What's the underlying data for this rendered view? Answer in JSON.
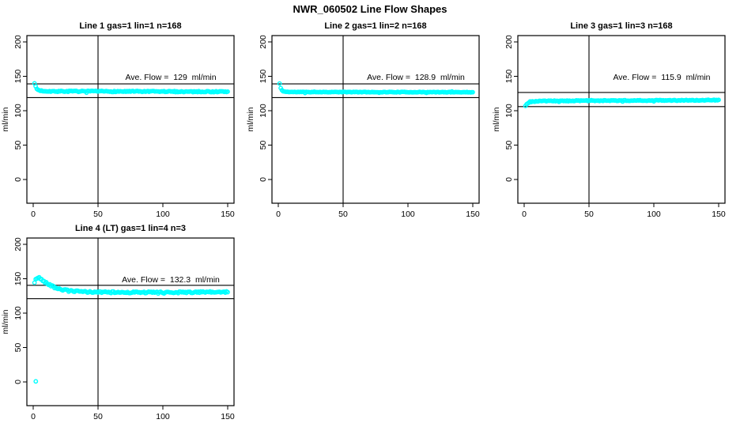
{
  "title": "NWR_060502  Line Flow Shapes",
  "colors": {
    "points": "#00FFFF",
    "axis": "#000000",
    "background": "#FFFFFF"
  },
  "chart_data": [
    {
      "type": "scatter",
      "title": "Line 1 gas=1 lin=1 n=168",
      "annotation": "Ave. Flow =  129  ml/min",
      "ave_flow": 129,
      "n": 168,
      "samples": 168,
      "marker": "open-circle",
      "xlabel": "",
      "ylabel": "ml/min",
      "x_ticks": [
        "0",
        "50",
        "100",
        "150"
      ],
      "y_ticks": [
        "0",
        "50",
        "100",
        "150",
        "200"
      ],
      "xlim": [
        -5,
        155
      ],
      "ylim": [
        -35,
        210
      ],
      "grid": false,
      "vline_x": 50,
      "ref_lines_y": [
        139,
        119
      ],
      "noise": 0.8,
      "profile": [
        [
          1,
          140.5
        ],
        [
          2,
          134
        ],
        [
          3,
          131
        ],
        [
          5,
          129.3
        ],
        [
          8,
          128.6
        ],
        [
          15,
          128.2
        ],
        [
          60,
          128.0
        ],
        [
          150,
          127.6
        ]
      ],
      "extra_points": []
    },
    {
      "type": "scatter",
      "title": "Line 2 gas=1 lin=2 n=168",
      "annotation": "Ave. Flow =  128.9  ml/min",
      "ave_flow": 128.9,
      "n": 168,
      "samples": 168,
      "marker": "open-circle",
      "xlabel": "",
      "ylabel": "ml/min",
      "x_ticks": [
        "0",
        "50",
        "100",
        "150"
      ],
      "y_ticks": [
        "0",
        "50",
        "100",
        "150",
        "200"
      ],
      "xlim": [
        -5,
        155
      ],
      "ylim": [
        -35,
        210
      ],
      "grid": false,
      "vline_x": 50,
      "ref_lines_y": [
        139,
        119
      ],
      "noise": 0.4,
      "profile": [
        [
          1,
          139.5
        ],
        [
          2,
          132
        ],
        [
          3,
          129
        ],
        [
          5,
          127.6
        ],
        [
          10,
          127.2
        ],
        [
          150,
          126.9
        ]
      ],
      "extra_points": []
    },
    {
      "type": "scatter",
      "title": "Line 3 gas=1 lin=3 n=168",
      "annotation": "Ave. Flow =  115.9  ml/min",
      "ave_flow": 115.9,
      "n": 168,
      "samples": 168,
      "marker": "open-circle",
      "xlabel": "",
      "ylabel": "ml/min",
      "x_ticks": [
        "0",
        "50",
        "100",
        "150"
      ],
      "y_ticks": [
        "0",
        "50",
        "100",
        "150",
        "200"
      ],
      "xlim": [
        -5,
        155
      ],
      "ylim": [
        -35,
        210
      ],
      "grid": false,
      "vline_x": 50,
      "ref_lines_y": [
        126.5,
        106
      ],
      "noise": 0.6,
      "profile": [
        [
          1,
          107.5
        ],
        [
          2,
          109.5
        ],
        [
          3,
          111.2
        ],
        [
          5,
          112.8
        ],
        [
          10,
          113.9
        ],
        [
          30,
          114.4
        ],
        [
          150,
          115.4
        ]
      ],
      "extra_points": []
    },
    {
      "type": "scatter",
      "title": "Line 4 (LT) gas=1 lin=4 n=3",
      "annotation": "Ave. Flow =  132.3  ml/min",
      "ave_flow": 132.3,
      "n": 3,
      "samples": 165,
      "marker": "open-circle",
      "xlabel": "",
      "ylabel": "ml/min",
      "x_ticks": [
        "0",
        "50",
        "100",
        "150"
      ],
      "y_ticks": [
        "0",
        "50",
        "100",
        "150",
        "200"
      ],
      "xlim": [
        -5,
        155
      ],
      "ylim": [
        -35,
        210
      ],
      "grid": false,
      "vline_x": 50,
      "ref_lines_y": [
        140.5,
        121
      ],
      "noise": 1.2,
      "profile": [
        [
          1,
          144
        ],
        [
          2,
          149
        ],
        [
          3,
          151.5
        ],
        [
          4,
          152
        ],
        [
          6,
          149.5
        ],
        [
          8,
          146.5
        ],
        [
          11,
          143
        ],
        [
          14,
          140
        ],
        [
          18,
          136.5
        ],
        [
          22,
          134.3
        ],
        [
          27,
          132.6
        ],
        [
          33,
          131.6
        ],
        [
          42,
          130.8
        ],
        [
          60,
          130.3
        ],
        [
          100,
          130.1
        ],
        [
          150,
          130.6
        ]
      ],
      "extra_points": [
        [
          2,
          0.8
        ]
      ]
    }
  ]
}
